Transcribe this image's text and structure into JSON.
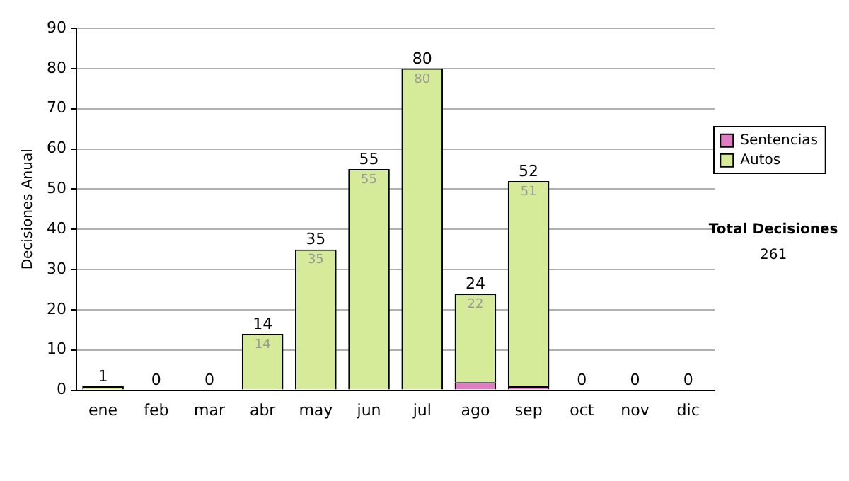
{
  "chart_data": {
    "type": "bar",
    "stacked": true,
    "ylabel": "Decisiones Anual",
    "categories": [
      "ene",
      "feb",
      "mar",
      "abr",
      "may",
      "jun",
      "jul",
      "ago",
      "sep",
      "oct",
      "nov",
      "dic"
    ],
    "series": [
      {
        "name": "Sentencias",
        "color": "#e07cc4",
        "values": [
          0,
          0,
          0,
          0,
          0,
          0,
          0,
          2,
          1,
          0,
          0,
          0
        ]
      },
      {
        "name": "Autos",
        "color": "#d6eb99",
        "values": [
          1,
          0,
          0,
          14,
          35,
          55,
          80,
          22,
          51,
          0,
          0,
          0
        ],
        "value_labels": [
          null,
          null,
          null,
          "14",
          "35",
          "55",
          "80",
          "22",
          "51",
          null,
          null,
          null
        ]
      }
    ],
    "totals": [
      "1",
      "0",
      "0",
      "14",
      "35",
      "55",
      "80",
      "24",
      "52",
      "0",
      "0",
      "0"
    ],
    "ylim": [
      0,
      90
    ],
    "yticks": [
      0,
      10,
      20,
      30,
      40,
      50,
      60,
      70,
      80,
      90
    ],
    "grid": "y",
    "legend": "right",
    "annotations": [
      "Total Decisiones",
      "261"
    ]
  }
}
